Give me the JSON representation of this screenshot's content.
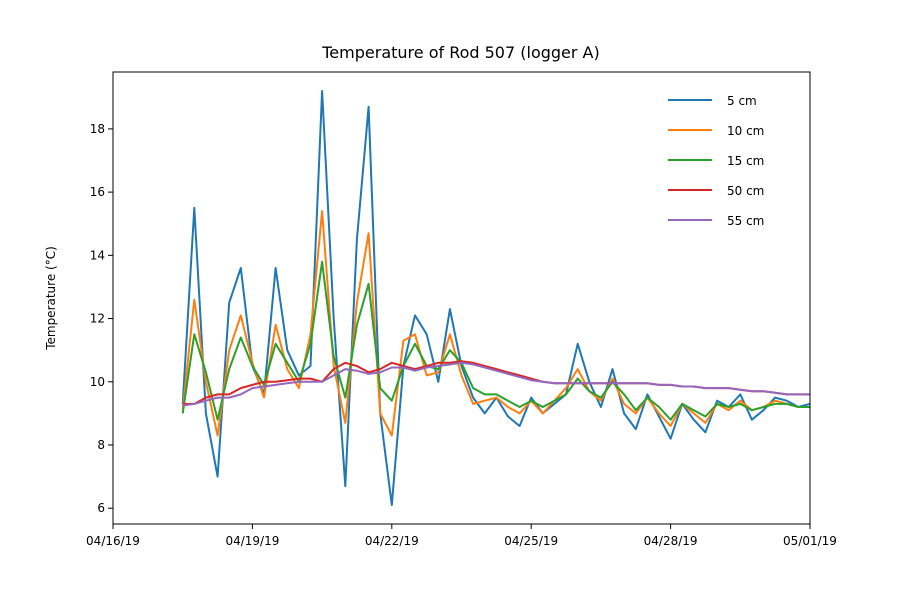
{
  "chart_data": {
    "type": "line",
    "title": "Temperature of Rod 507 (logger A)",
    "xlabel": "",
    "ylabel": "Temperature (°C)",
    "xlim": [
      "2019-04-16",
      "2019-05-01"
    ],
    "ylim": [
      5.5,
      19.8
    ],
    "x_ticks": [
      "04/16/19",
      "04/19/19",
      "04/22/19",
      "04/25/19",
      "04/28/19",
      "05/01/19"
    ],
    "y_ticks": [
      "6",
      "8",
      "10",
      "12",
      "14",
      "16",
      "18"
    ],
    "legend_position": "top-right",
    "grid": false,
    "x": [
      "2019-04-17 12:00",
      "2019-04-17 18:00",
      "2019-04-18 00:00",
      "2019-04-18 06:00",
      "2019-04-18 12:00",
      "2019-04-18 18:00",
      "2019-04-19 00:00",
      "2019-04-19 06:00",
      "2019-04-19 12:00",
      "2019-04-19 18:00",
      "2019-04-20 00:00",
      "2019-04-20 06:00",
      "2019-04-20 12:00",
      "2019-04-20 18:00",
      "2019-04-21 00:00",
      "2019-04-21 06:00",
      "2019-04-21 12:00",
      "2019-04-21 18:00",
      "2019-04-22 00:00",
      "2019-04-22 06:00",
      "2019-04-22 12:00",
      "2019-04-22 18:00",
      "2019-04-23 00:00",
      "2019-04-23 06:00",
      "2019-04-23 12:00",
      "2019-04-23 18:00",
      "2019-04-24 00:00",
      "2019-04-24 06:00",
      "2019-04-24 12:00",
      "2019-04-24 18:00",
      "2019-04-25 00:00",
      "2019-04-25 06:00",
      "2019-04-25 12:00",
      "2019-04-25 18:00",
      "2019-04-26 00:00",
      "2019-04-26 06:00",
      "2019-04-26 12:00",
      "2019-04-26 18:00",
      "2019-04-27 00:00",
      "2019-04-27 06:00",
      "2019-04-27 12:00",
      "2019-04-27 18:00",
      "2019-04-28 00:00",
      "2019-04-28 06:00",
      "2019-04-28 12:00",
      "2019-04-28 18:00",
      "2019-04-29 00:00",
      "2019-04-29 06:00",
      "2019-04-29 12:00",
      "2019-04-29 18:00",
      "2019-04-30 00:00",
      "2019-04-30 06:00",
      "2019-04-30 12:00",
      "2019-04-30 18:00",
      "2019-05-01 00:00"
    ],
    "series": [
      {
        "name": "5 cm",
        "color": "#1f77b4",
        "values": [
          9.3,
          15.5,
          9.0,
          7.0,
          12.5,
          13.6,
          10.5,
          9.6,
          13.6,
          11.0,
          10.2,
          10.5,
          19.2,
          12.0,
          6.7,
          14.5,
          18.7,
          9.0,
          6.1,
          10.5,
          12.1,
          11.5,
          10.0,
          12.3,
          10.5,
          9.5,
          9.0,
          9.5,
          8.9,
          8.6,
          9.5,
          9.0,
          9.3,
          9.6,
          11.2,
          10.0,
          9.2,
          10.4,
          9.0,
          8.5,
          9.6,
          8.9,
          8.2,
          9.3,
          8.8,
          8.4,
          9.4,
          9.2,
          9.6,
          8.8,
          9.1,
          9.5,
          9.4,
          9.2,
          9.3
        ]
      },
      {
        "name": "10 cm",
        "color": "#ff7f0e",
        "values": [
          9.1,
          12.6,
          10.0,
          8.3,
          11.0,
          12.1,
          10.6,
          9.5,
          11.8,
          10.4,
          9.8,
          11.5,
          15.4,
          10.5,
          8.7,
          12.5,
          14.7,
          9.0,
          8.3,
          11.3,
          11.5,
          10.2,
          10.3,
          11.5,
          10.2,
          9.3,
          9.4,
          9.5,
          9.2,
          9.0,
          9.4,
          9.0,
          9.4,
          9.8,
          10.4,
          9.7,
          9.4,
          10.1,
          9.3,
          9.0,
          9.5,
          9.0,
          8.6,
          9.3,
          9.0,
          8.7,
          9.3,
          9.1,
          9.4,
          9.1,
          9.2,
          9.4,
          9.3,
          9.2,
          9.2
        ]
      },
      {
        "name": "15 cm",
        "color": "#2ca02c",
        "values": [
          9.0,
          11.5,
          10.3,
          8.8,
          10.4,
          11.4,
          10.5,
          9.9,
          11.2,
          10.6,
          10.0,
          11.2,
          13.8,
          10.8,
          9.5,
          11.8,
          13.1,
          9.8,
          9.4,
          10.5,
          11.2,
          10.5,
          10.4,
          11.0,
          10.6,
          9.8,
          9.6,
          9.6,
          9.4,
          9.2,
          9.4,
          9.2,
          9.4,
          9.6,
          10.1,
          9.7,
          9.5,
          10.0,
          9.6,
          9.1,
          9.5,
          9.2,
          8.8,
          9.3,
          9.1,
          8.9,
          9.3,
          9.2,
          9.3,
          9.1,
          9.2,
          9.3,
          9.3,
          9.2,
          9.2
        ]
      },
      {
        "name": "50 cm",
        "color": "#d62728",
        "values": [
          9.3,
          9.3,
          9.5,
          9.6,
          9.6,
          9.8,
          9.9,
          10.0,
          10.0,
          10.05,
          10.1,
          10.1,
          10.0,
          10.4,
          10.6,
          10.5,
          10.3,
          10.4,
          10.6,
          10.5,
          10.4,
          10.5,
          10.6,
          10.6,
          10.65,
          10.6,
          10.5,
          10.4,
          10.3,
          10.2,
          10.1,
          10.0,
          9.95,
          9.95,
          9.95,
          9.95,
          9.95,
          9.95,
          9.95,
          9.95,
          9.95,
          9.9,
          9.9,
          9.85,
          9.85,
          9.8,
          9.8,
          9.8,
          9.75,
          9.7,
          9.7,
          9.65,
          9.6,
          9.6,
          9.6
        ]
      },
      {
        "name": "55 cm",
        "color": "#9467bd",
        "values": [
          9.25,
          9.3,
          9.4,
          9.5,
          9.5,
          9.6,
          9.8,
          9.85,
          9.9,
          9.95,
          10.0,
          10.0,
          10.0,
          10.2,
          10.4,
          10.35,
          10.25,
          10.3,
          10.45,
          10.45,
          10.35,
          10.45,
          10.5,
          10.55,
          10.6,
          10.55,
          10.45,
          10.35,
          10.25,
          10.15,
          10.05,
          10.0,
          9.95,
          9.95,
          9.95,
          9.95,
          9.95,
          9.95,
          9.95,
          9.95,
          9.95,
          9.9,
          9.9,
          9.85,
          9.85,
          9.8,
          9.8,
          9.8,
          9.75,
          9.7,
          9.7,
          9.65,
          9.6,
          9.6,
          9.6
        ]
      }
    ]
  }
}
